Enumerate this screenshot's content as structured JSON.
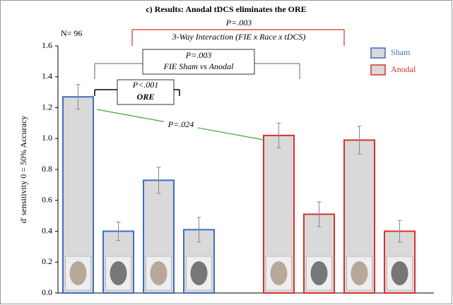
{
  "chart_data": {
    "type": "bar",
    "title": "c) Results:  Anodal tDCS eliminates the ORE",
    "note": "N= 96",
    "y_label": "d' sensitivity 0 = 50% Accuracy",
    "categories": [
      null,
      null,
      null,
      null
    ],
    "series": [
      {
        "name": "Sham",
        "color": "#3a6fc4",
        "fill": "#d9d9d9",
        "values": [
          1.27,
          0.4,
          0.73,
          0.41
        ],
        "errors": [
          0.08,
          0.06,
          0.085,
          0.08
        ]
      },
      {
        "name": "Anodal",
        "color": "#d9312b",
        "fill": "#d9d9d9",
        "values": [
          1.02,
          0.51,
          0.99,
          0.4
        ],
        "errors": [
          0.08,
          0.08,
          0.09,
          0.07
        ]
      }
    ],
    "ylim": [
      0,
      1.6
    ],
    "yticks": [
      {
        "value": 0,
        "label": "0.0"
      },
      0.2,
      0.4,
      0.6,
      0.8,
      {
        "value": 1,
        "label": "1.0"
      },
      1.2,
      1.4,
      1.6
    ],
    "legend": "upper right",
    "annotations": [
      {
        "lines": [
          "P=.003",
          "3-Way Interaction (FIE x Race x tDCS)"
        ],
        "color": "#d9312b"
      },
      {
        "lines": [
          "P=.003",
          "FIE Sham vs Anodal"
        ],
        "color": "#808080"
      },
      {
        "lines": [
          "P<.001",
          "ORE"
        ],
        "color": "#000000"
      },
      {
        "lines": [
          "P=.024"
        ],
        "color": "#3aa83a"
      }
    ]
  }
}
